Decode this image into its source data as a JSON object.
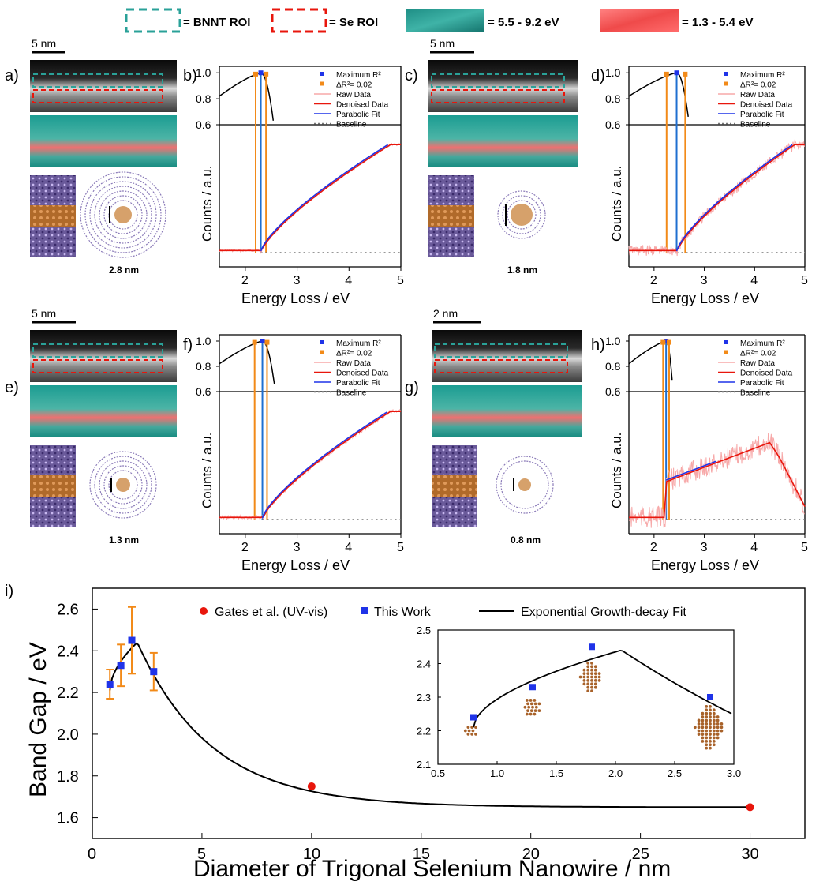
{
  "legend_top": {
    "bnnt_roi": "= BNNT ROI",
    "se_roi": "= Se ROI",
    "range_teal": "= 5.5 - 9.2 eV",
    "range_red": "= 1.3 - 5.4 eV",
    "teal_color": "#2aa198",
    "red_color": "#ef4a4a"
  },
  "panel_letters": [
    "a)",
    "b)",
    "c)",
    "d)",
    "e)",
    "f)",
    "g)",
    "h)",
    "i)"
  ],
  "scale_bars": [
    "5 nm",
    "5 nm",
    "5 nm",
    "2 nm"
  ],
  "diameters": [
    "2.8 nm",
    "1.8 nm",
    "1.3 nm",
    "0.8 nm"
  ],
  "eels_common": {
    "ylabel": "Counts / a.u.",
    "xlabel": "Energy Loss / eV",
    "xticks": [
      "2",
      "3",
      "4",
      "5"
    ],
    "r2_ticks": [
      "1.0",
      "0.8",
      "0.6"
    ],
    "legend": [
      "Maximum R²",
      "ΔR²= 0.02",
      "Raw Data",
      "Denoised Data",
      "Parabolic Fit",
      "Baseline"
    ]
  },
  "chart_data": [
    {
      "type": "line",
      "panel": "b",
      "r2_peak_x": 2.3,
      "r2_band": [
        2.2,
        2.4
      ],
      "onset": 2.3,
      "xlim": [
        1.5,
        5.0
      ],
      "ylim_r2": [
        0.6,
        1.05
      ]
    },
    {
      "type": "line",
      "panel": "d",
      "r2_peak_x": 2.45,
      "r2_band": [
        2.25,
        2.62
      ],
      "onset": 2.45,
      "xlim": [
        1.5,
        5.0
      ],
      "ylim_r2": [
        0.6,
        1.05
      ]
    },
    {
      "type": "line",
      "panel": "f",
      "r2_peak_x": 2.33,
      "r2_band": [
        2.18,
        2.42
      ],
      "onset": 2.33,
      "xlim": [
        1.5,
        5.0
      ],
      "ylim_r2": [
        0.6,
        1.05
      ]
    },
    {
      "type": "line",
      "panel": "h",
      "r2_peak_x": 2.24,
      "r2_band": [
        2.18,
        2.3
      ],
      "onset": 2.24,
      "xlim": [
        1.5,
        5.0
      ],
      "ylim_r2": [
        0.6,
        1.05
      ]
    },
    {
      "type": "scatter",
      "panel": "i",
      "xlabel": "Diameter of Trigonal Selenium Nanowire / nm",
      "ylabel": "Band Gap / eV",
      "xlim": [
        0,
        32.5
      ],
      "ylim": [
        1.5,
        2.7
      ],
      "xticks": [
        "0",
        "5",
        "10",
        "15",
        "20",
        "25",
        "30"
      ],
      "yticks": [
        "1.6",
        "1.8",
        "2.0",
        "2.2",
        "2.4",
        "2.6"
      ],
      "series": [
        {
          "name": "Gates et al. (UV-vis)",
          "color": "#e8160c",
          "x": [
            10,
            30
          ],
          "y": [
            1.75,
            1.65
          ]
        },
        {
          "name": "This Work",
          "color": "#1f33e8",
          "x": [
            0.8,
            1.3,
            1.8,
            2.8
          ],
          "y": [
            2.24,
            2.33,
            2.45,
            2.3
          ],
          "yerr": [
            0.07,
            0.1,
            0.16,
            0.09
          ]
        },
        {
          "name": "Exponential Growth-decay Fit",
          "color": "#000000"
        }
      ],
      "inset": {
        "xlim": [
          0.5,
          3.0
        ],
        "ylim": [
          2.1,
          2.5
        ],
        "xticks": [
          "0.5",
          "1.0",
          "1.5",
          "2.0",
          "2.5",
          "3.0"
        ],
        "yticks": [
          "2.1",
          "2.2",
          "2.3",
          "2.4",
          "2.5"
        ]
      }
    }
  ]
}
